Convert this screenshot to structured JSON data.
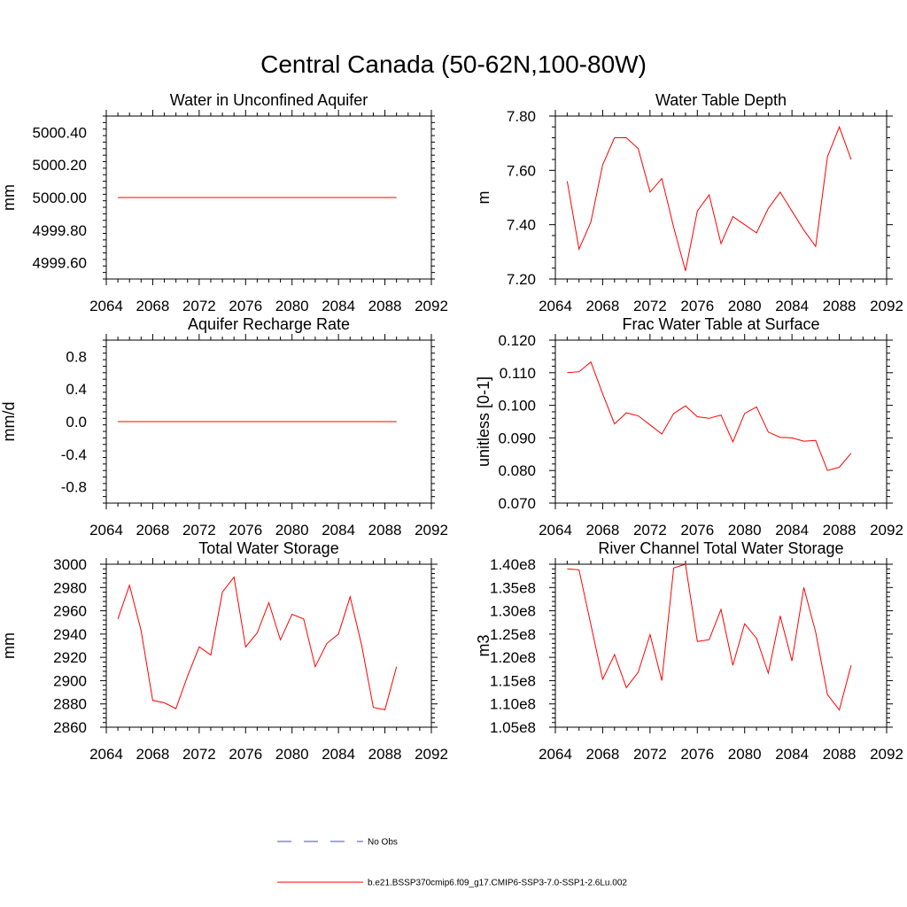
{
  "figure": {
    "title": "Central Canada (50-62N,100-80W)"
  },
  "colors": {
    "model_line": "#ff0000",
    "obs_line": "#4a4ac8",
    "axis": "#000000"
  },
  "legend": {
    "entries": [
      {
        "label": "No Obs",
        "style": "dashed",
        "color": "#4a4ac8"
      },
      {
        "label": "b.e21.BSSP370cmip6.f09_g17.CMIP6-SSP3-7.0-SSP1-2.6Lu.002",
        "style": "solid",
        "color": "#ff0000"
      }
    ]
  },
  "chart_data": [
    {
      "type": "line",
      "title": "Water in Unconfined Aquifer",
      "ylabel": "mm",
      "xlim": [
        2064,
        2092
      ],
      "xticks": [
        "2064",
        "2068",
        "2072",
        "2076",
        "2080",
        "2084",
        "2088",
        "2092"
      ],
      "ylim": [
        4999.5,
        5000.5
      ],
      "yticks": [
        "4999.60",
        "4999.80",
        "5000.00",
        "5000.20",
        "5000.40"
      ],
      "series": [
        {
          "x": [
            2065,
            2066,
            2067,
            2068,
            2069,
            2070,
            2071,
            2072,
            2073,
            2074,
            2075,
            2076,
            2077,
            2078,
            2079,
            2080,
            2081,
            2082,
            2083,
            2084,
            2085,
            2086,
            2087,
            2088,
            2089
          ],
          "y": [
            5000,
            5000,
            5000,
            5000,
            5000,
            5000,
            5000,
            5000,
            5000,
            5000,
            5000,
            5000,
            5000,
            5000,
            5000,
            5000,
            5000,
            5000,
            5000,
            5000,
            5000,
            5000,
            5000,
            5000,
            5000
          ]
        }
      ]
    },
    {
      "type": "line",
      "title": "Water Table Depth",
      "ylabel": "m",
      "xlim": [
        2064,
        2092
      ],
      "xticks": [
        "2064",
        "2068",
        "2072",
        "2076",
        "2080",
        "2084",
        "2088",
        "2092"
      ],
      "ylim": [
        7.2,
        7.8
      ],
      "yticks": [
        "7.20",
        "7.40",
        "7.60",
        "7.80"
      ],
      "series": [
        {
          "x": [
            2065,
            2066,
            2067,
            2068,
            2069,
            2070,
            2071,
            2072,
            2073,
            2074,
            2075,
            2076,
            2077,
            2078,
            2079,
            2080,
            2081,
            2082,
            2083,
            2084,
            2085,
            2086,
            2087,
            2088,
            2089
          ],
          "y": [
            7.56,
            7.31,
            7.41,
            7.62,
            7.72,
            7.72,
            7.68,
            7.52,
            7.57,
            7.39,
            7.23,
            7.45,
            7.51,
            7.33,
            7.43,
            7.4,
            7.37,
            7.46,
            7.52,
            7.45,
            7.38,
            7.32,
            7.65,
            7.76,
            7.64
          ]
        }
      ]
    },
    {
      "type": "line",
      "title": "Aquifer Recharge Rate",
      "ylabel": "mm/d",
      "xlim": [
        2064,
        2092
      ],
      "xticks": [
        "2064",
        "2068",
        "2072",
        "2076",
        "2080",
        "2084",
        "2088",
        "2092"
      ],
      "ylim": [
        -1.0,
        1.0
      ],
      "yticks": [
        "-0.8",
        "-0.4",
        "0.0",
        "0.4",
        "0.8"
      ],
      "series": [
        {
          "x": [
            2065,
            2066,
            2067,
            2068,
            2069,
            2070,
            2071,
            2072,
            2073,
            2074,
            2075,
            2076,
            2077,
            2078,
            2079,
            2080,
            2081,
            2082,
            2083,
            2084,
            2085,
            2086,
            2087,
            2088,
            2089
          ],
          "y": [
            0,
            0,
            0,
            0,
            0,
            0,
            0,
            0,
            0,
            0,
            0,
            0,
            0,
            0,
            0,
            0,
            0,
            0,
            0,
            0,
            0,
            0,
            0,
            0,
            0
          ]
        }
      ]
    },
    {
      "type": "line",
      "title": "Frac Water Table at Surface",
      "ylabel": "unitless [0-1]",
      "xlim": [
        2064,
        2092
      ],
      "xticks": [
        "2064",
        "2068",
        "2072",
        "2076",
        "2080",
        "2084",
        "2088",
        "2092"
      ],
      "ylim": [
        0.07,
        0.12
      ],
      "yticks": [
        "0.070",
        "0.080",
        "0.090",
        "0.100",
        "0.110",
        "0.120"
      ],
      "series": [
        {
          "x": [
            2065,
            2066,
            2067,
            2068,
            2069,
            2070,
            2071,
            2072,
            2073,
            2074,
            2075,
            2076,
            2077,
            2078,
            2079,
            2080,
            2081,
            2082,
            2083,
            2084,
            2085,
            2086,
            2087,
            2088,
            2089
          ],
          "y": [
            0.11,
            0.1103,
            0.1133,
            0.1035,
            0.0943,
            0.0977,
            0.0968,
            0.094,
            0.0912,
            0.0975,
            0.0998,
            0.0965,
            0.096,
            0.097,
            0.0888,
            0.0975,
            0.0995,
            0.0918,
            0.0902,
            0.09,
            0.089,
            0.0892,
            0.08,
            0.081,
            0.0853
          ]
        }
      ]
    },
    {
      "type": "line",
      "title": "Total Water Storage",
      "ylabel": "mm",
      "xlim": [
        2064,
        2092
      ],
      "xticks": [
        "2064",
        "2068",
        "2072",
        "2076",
        "2080",
        "2084",
        "2088",
        "2092"
      ],
      "ylim": [
        2860,
        3000
      ],
      "yticks": [
        "2860",
        "2880",
        "2900",
        "2920",
        "2940",
        "2960",
        "2980",
        "3000"
      ],
      "series": [
        {
          "x": [
            2065,
            2066,
            2067,
            2068,
            2069,
            2070,
            2071,
            2072,
            2073,
            2074,
            2075,
            2076,
            2077,
            2078,
            2079,
            2080,
            2081,
            2082,
            2083,
            2084,
            2085,
            2086,
            2087,
            2088,
            2089
          ],
          "y": [
            2953,
            2982,
            2943,
            2883,
            2881,
            2876,
            2904,
            2929,
            2922,
            2976,
            2989,
            2929,
            2941,
            2967,
            2935,
            2957,
            2953,
            2912,
            2932,
            2940,
            2972,
            2930,
            2877,
            2875,
            2912
          ]
        }
      ]
    },
    {
      "type": "line",
      "title": "River Channel Total Water Storage",
      "ylabel": "m3",
      "xlim": [
        2064,
        2092
      ],
      "xticks": [
        "2064",
        "2068",
        "2072",
        "2076",
        "2080",
        "2084",
        "2088",
        "2092"
      ],
      "ylim": [
        105000000.0,
        140000000.0
      ],
      "yticks": [
        "1.05e8",
        "1.10e8",
        "1.15e8",
        "1.20e8",
        "1.25e8",
        "1.30e8",
        "1.35e8",
        "1.40e8"
      ],
      "series": [
        {
          "x": [
            2065,
            2066,
            2067,
            2068,
            2069,
            2070,
            2071,
            2072,
            2073,
            2074,
            2075,
            2076,
            2077,
            2078,
            2079,
            2080,
            2081,
            2082,
            2083,
            2084,
            2085,
            2086,
            2087,
            2088,
            2089
          ],
          "y": [
            139000000.0,
            138800000.0,
            127000000.0,
            115300000.0,
            120600000.0,
            113500000.0,
            116800000.0,
            124900000.0,
            115000000.0,
            139200000.0,
            140000000.0,
            123400000.0,
            123800000.0,
            130300000.0,
            118300000.0,
            127200000.0,
            124100000.0,
            116600000.0,
            128900000.0,
            119200000.0,
            135000000.0,
            125400000.0,
            112000000.0,
            108700000.0,
            118300000.0
          ]
        }
      ]
    }
  ]
}
